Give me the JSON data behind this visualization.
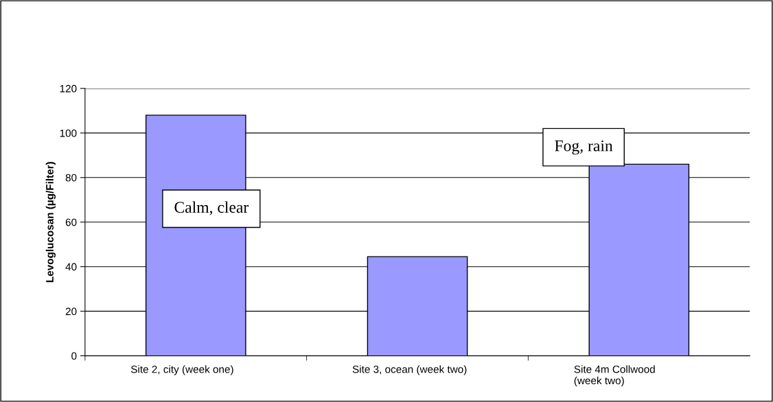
{
  "chart_data": {
    "type": "bar",
    "ylabel": "Levoglucosan (µg/Filter)",
    "categories": [
      "Site 2, city (week one)",
      "Site 3, ocean (week two)",
      "Site 4m Collwood (week two)"
    ],
    "values": [
      108,
      44.5,
      86
    ],
    "color": "#9999ff",
    "ylim": [
      0,
      120
    ],
    "yticks": [
      0,
      20,
      40,
      60,
      80,
      100,
      120
    ],
    "grid": "y",
    "annotations": [
      "Calm, clear",
      "Fog, rain"
    ]
  }
}
